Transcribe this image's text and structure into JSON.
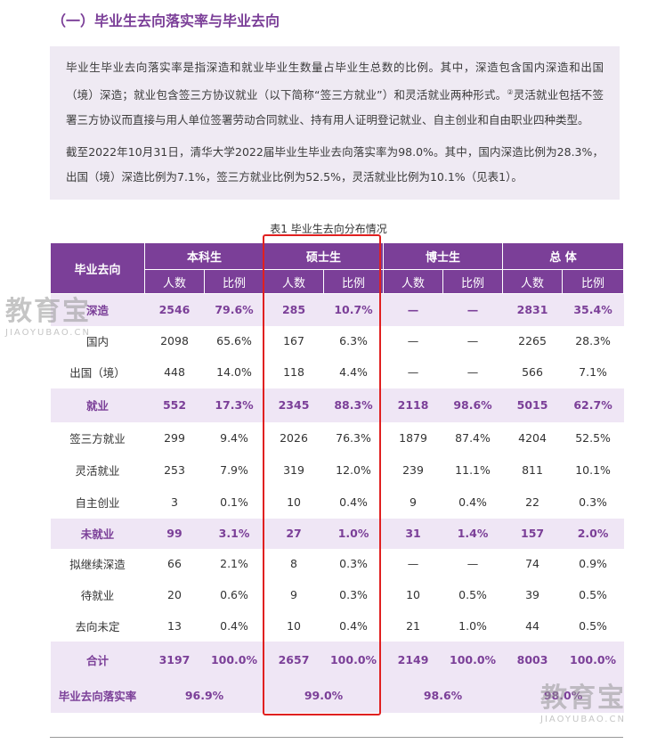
{
  "section_title": "（一）毕业生去向落实率与毕业去向",
  "intro": {
    "p1_text": "毕业生毕业去向落实率是指深造和就业毕业生数量占毕业生总数的比例。其中，深造包含国内深造和出国（境）深造；就业包含签三方协议就业（以下简称“签三方就业”）和灵活就业两种形式。",
    "p1_sup": "②",
    "p1_tail": "灵活就业包括不签署三方协议而直接与用人单位签署劳动合同就业、持有用人证明登记就业、自主创业和自由职业四种类型。",
    "p2": "截至2022年10月31日，清华大学2022届毕业生毕业去向落实率为98.0%。其中，国内深造比例为28.3%，出国（境）深造比例为7.1%，签三方就业比例为52.5%，灵活就业比例为10.1%（见表1）。"
  },
  "table": {
    "caption": "表1  毕业生去向分布情况",
    "row_header": "毕业去向",
    "groups": [
      "本科生",
      "硕士生",
      "博士生",
      "总  体"
    ],
    "subheaders": [
      "人数",
      "比例"
    ],
    "rows": [
      {
        "type": "cat",
        "label": "深造",
        "cells": [
          "2546",
          "79.6%",
          "285",
          "10.7%",
          "—",
          "—",
          "2831",
          "35.4%"
        ]
      },
      {
        "type": "sub",
        "label": "国内",
        "cells": [
          "2098",
          "65.6%",
          "167",
          "6.3%",
          "—",
          "—",
          "2265",
          "28.3%"
        ]
      },
      {
        "type": "sub",
        "label": "出国（境）",
        "cells": [
          "448",
          "14.0%",
          "118",
          "4.4%",
          "—",
          "—",
          "566",
          "7.1%"
        ]
      },
      {
        "type": "cat",
        "label": "就业",
        "cells": [
          "552",
          "17.3%",
          "2345",
          "88.3%",
          "2118",
          "98.6%",
          "5015",
          "62.7%"
        ]
      },
      {
        "type": "sub",
        "label": "签三方就业",
        "cells": [
          "299",
          "9.4%",
          "2026",
          "76.3%",
          "1879",
          "87.4%",
          "4204",
          "52.5%"
        ]
      },
      {
        "type": "sub",
        "label": "灵活就业",
        "cells": [
          "253",
          "7.9%",
          "319",
          "12.0%",
          "239",
          "11.1%",
          "811",
          "10.1%"
        ]
      },
      {
        "type": "sub",
        "label": "自主创业",
        "cells": [
          "3",
          "0.1%",
          "10",
          "0.4%",
          "9",
          "0.4%",
          "22",
          "0.3%"
        ]
      },
      {
        "type": "cat",
        "label": "未就业",
        "cells": [
          "99",
          "3.1%",
          "27",
          "1.0%",
          "31",
          "1.4%",
          "157",
          "2.0%"
        ]
      },
      {
        "type": "sub",
        "label": "拟继续深造",
        "cells": [
          "66",
          "2.1%",
          "8",
          "0.3%",
          "—",
          "—",
          "74",
          "0.9%"
        ]
      },
      {
        "type": "sub",
        "label": "待就业",
        "cells": [
          "20",
          "0.6%",
          "9",
          "0.3%",
          "10",
          "0.5%",
          "39",
          "0.5%"
        ]
      },
      {
        "type": "sub",
        "label": "去向未定",
        "cells": [
          "13",
          "0.4%",
          "10",
          "0.4%",
          "21",
          "1.0%",
          "44",
          "0.5%"
        ]
      },
      {
        "type": "total",
        "label": "合计",
        "cells": [
          "3197",
          "100.0%",
          "2657",
          "100.0%",
          "2149",
          "100.0%",
          "8003",
          "100.0%"
        ]
      }
    ],
    "rate_row": {
      "label": "毕业去向落实率",
      "values": [
        "96.9%",
        "99.0%",
        "98.6%",
        "98.0%"
      ]
    }
  },
  "watermark": {
    "main": "教育宝",
    "sub": "JIAOYUBAO.CN"
  },
  "colors": {
    "accent": "#7b3f98",
    "tint": "#efe6f5",
    "highlight": "#e02020"
  }
}
